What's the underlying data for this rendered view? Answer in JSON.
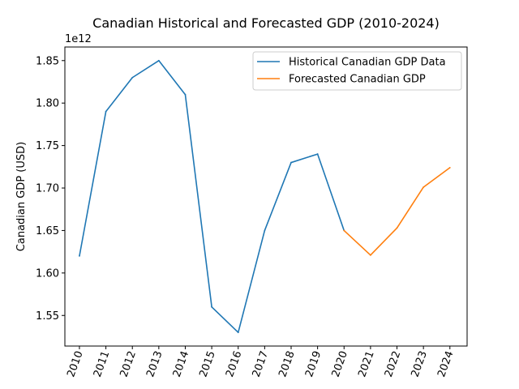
{
  "chart_data": {
    "type": "line",
    "title": "Canadian Historical and Forecasted GDP (2010-2024)",
    "xlabel": "",
    "ylabel": "Canadian GDP (USD)",
    "y_offset_text": "1e12",
    "xlim": [
      2009.45,
      2024.65
    ],
    "ylim": [
      1.514,
      1.866
    ],
    "x_ticks": [
      "2010",
      "2011",
      "2012",
      "2013",
      "2014",
      "2015",
      "2016",
      "2017",
      "2018",
      "2019",
      "2020",
      "2021",
      "2022",
      "2023",
      "2024"
    ],
    "y_ticks": [
      "1.55",
      "1.60",
      "1.65",
      "1.70",
      "1.75",
      "1.80",
      "1.85"
    ],
    "x_tick_rotation": "rotated",
    "grid": false,
    "legend_position": "top-right",
    "series": [
      {
        "name": "Historical Canadian GDP Data",
        "color": "#1f77b4",
        "x": [
          2010,
          2011,
          2012,
          2013,
          2014,
          2015,
          2016,
          2017,
          2018,
          2019,
          2020
        ],
        "values": [
          1.62,
          1.79,
          1.83,
          1.85,
          1.81,
          1.56,
          1.53,
          1.65,
          1.73,
          1.74,
          1.65
        ]
      },
      {
        "name": "Forecasted Canadian GDP",
        "color": "#ff7f0e",
        "x": [
          2020,
          2021,
          2022,
          2023,
          2024
        ],
        "values": [
          1.65,
          1.621,
          1.653,
          1.701,
          1.724
        ]
      }
    ]
  }
}
